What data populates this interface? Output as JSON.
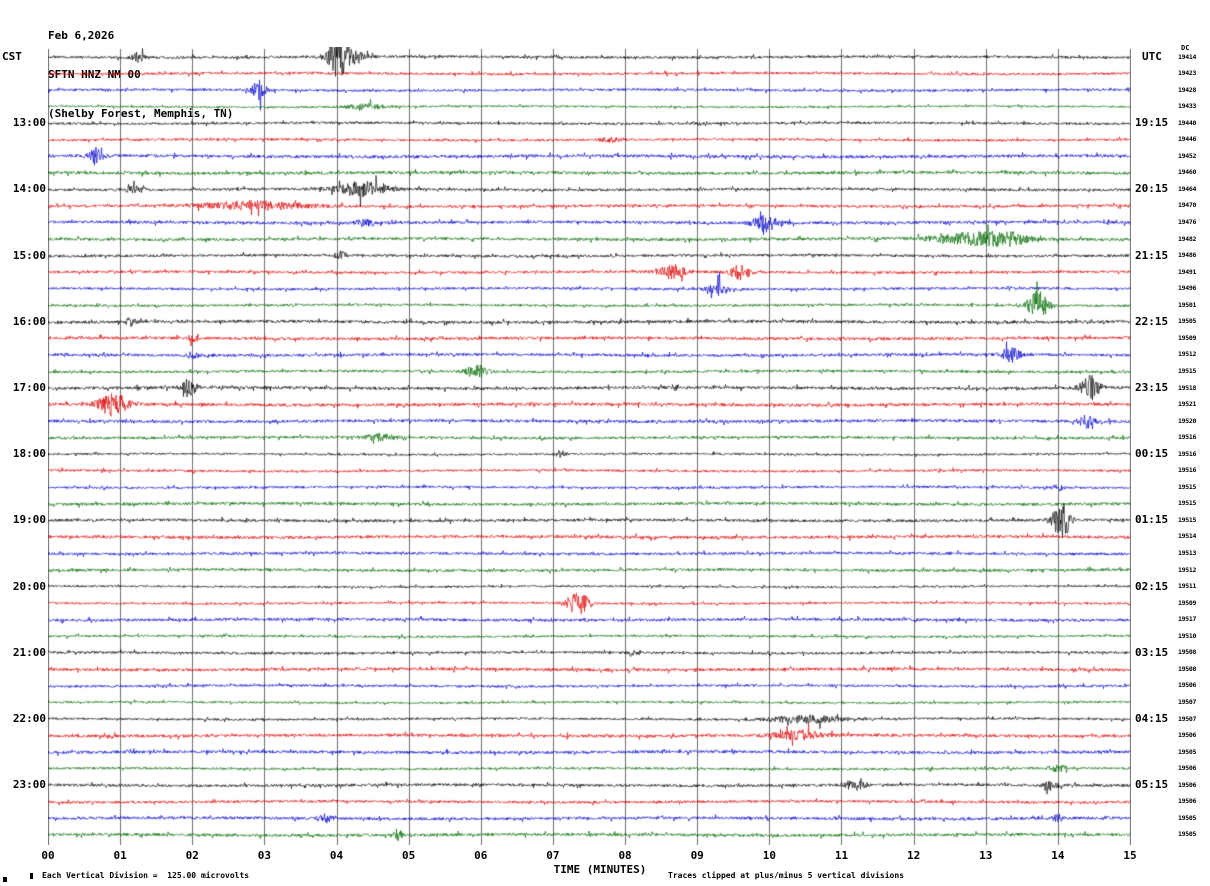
{
  "header": {
    "date": "Feb 6,2026",
    "station": "SFTN HNZ NM 00",
    "location": "(Shelby Forest, Memphis, TN)"
  },
  "axes": {
    "left_label": "CST",
    "right_label": "UTC",
    "x_label": "TIME (MINUTES)",
    "x_ticks": [
      "00",
      "01",
      "02",
      "03",
      "04",
      "05",
      "06",
      "07",
      "08",
      "09",
      "10",
      "11",
      "12",
      "13",
      "14",
      "15"
    ]
  },
  "footer": {
    "scale_note": "Each Vertical Division =  125.00 microvolts",
    "clip_note": "Traces clipped at plus/minus 5 vertical divisions"
  },
  "chart_data": {
    "type": "line",
    "title": "SFTN HNZ NM 00 (Shelby Forest, Memphis, TN) helicorder record, Feb 6,2026",
    "x_range_minutes": [
      0,
      15
    ],
    "minutes_per_row": 15,
    "rows": 48,
    "first_row_start_cst": "12:00",
    "grid": "vertical-minute-lines",
    "dc_label": "DC",
    "trace_colors": [
      "#000000",
      "#dd0000",
      "#0000cc",
      "#006a00"
    ],
    "grid_color": "#6e6e6e",
    "left_hour_labels": [
      "13:00",
      "14:00",
      "15:00",
      "16:00",
      "17:00",
      "18:00",
      "19:00",
      "20:00",
      "21:00",
      "22:00",
      "23:00"
    ],
    "right_hour_labels": [
      "19:15",
      "20:15",
      "21:15",
      "22:15",
      "23:15",
      "00:15",
      "01:15",
      "02:15",
      "03:15",
      "04:15",
      "05:15"
    ],
    "hour_label_rows": [
      4,
      8,
      12,
      16,
      20,
      24,
      28,
      32,
      36,
      40,
      44
    ],
    "right_gain_values": [
      19414,
      19423,
      19428,
      19433,
      19440,
      19446,
      19452,
      19460,
      19464,
      19470,
      19476,
      19482,
      19486,
      19491,
      19496,
      19501,
      19505,
      19509,
      19512,
      19515,
      19518,
      19521,
      19520,
      19516,
      19516,
      19516,
      19515,
      19515,
      19515,
      19514,
      19513,
      19512,
      19511,
      19509,
      19517,
      19510,
      19508,
      19508,
      19506,
      19507,
      19507,
      19506,
      19505,
      19506,
      19506,
      19506,
      19505,
      19505
    ],
    "noise_seed": 42,
    "events": [
      {
        "r": 0,
        "t": 1.25,
        "a": 5,
        "w": 0.06
      },
      {
        "r": 0,
        "t": 4.02,
        "a": 16,
        "w": 0.1
      },
      {
        "r": 0,
        "t": 4.15,
        "a": 8,
        "w": 0.15
      },
      {
        "r": 2,
        "t": 2.92,
        "a": 9,
        "w": 0.07
      },
      {
        "r": 3,
        "t": 4.4,
        "a": 2.5,
        "w": 0.2
      },
      {
        "r": 5,
        "t": 7.8,
        "a": 2,
        "w": 0.1
      },
      {
        "r": 6,
        "t": 0.68,
        "a": 8,
        "w": 0.07
      },
      {
        "r": 8,
        "t": 4.35,
        "a": 7,
        "w": 0.25
      },
      {
        "r": 8,
        "t": 1.2,
        "a": 3,
        "w": 0.1
      },
      {
        "r": 9,
        "t": 2.9,
        "a": 4,
        "w": 0.5
      },
      {
        "r": 10,
        "t": 9.95,
        "a": 8,
        "w": 0.12
      },
      {
        "r": 10,
        "t": 4.4,
        "a": 3,
        "w": 0.1
      },
      {
        "r": 11,
        "t": 12.9,
        "a": 6,
        "w": 0.4
      },
      {
        "r": 11,
        "t": 13.35,
        "a": 4,
        "w": 0.15
      },
      {
        "r": 12,
        "t": 4.05,
        "a": 4,
        "w": 0.05
      },
      {
        "r": 13,
        "t": 8.65,
        "a": 7,
        "w": 0.12
      },
      {
        "r": 13,
        "t": 9.6,
        "a": 7,
        "w": 0.1
      },
      {
        "r": 14,
        "t": 9.3,
        "a": 6,
        "w": 0.1
      },
      {
        "r": 15,
        "t": 13.72,
        "a": 14,
        "w": 0.1
      },
      {
        "r": 16,
        "t": 1.15,
        "a": 3.5,
        "w": 0.05
      },
      {
        "r": 17,
        "t": 2.0,
        "a": 3,
        "w": 0.05
      },
      {
        "r": 18,
        "t": 13.35,
        "a": 7,
        "w": 0.09
      },
      {
        "r": 18,
        "t": 2.0,
        "a": 3,
        "w": 0.06
      },
      {
        "r": 19,
        "t": 5.95,
        "a": 7,
        "w": 0.1
      },
      {
        "r": 20,
        "t": 1.95,
        "a": 9,
        "w": 0.07
      },
      {
        "r": 20,
        "t": 14.45,
        "a": 12,
        "w": 0.09
      },
      {
        "r": 21,
        "t": 0.9,
        "a": 11,
        "w": 0.14
      },
      {
        "r": 22,
        "t": 14.4,
        "a": 6,
        "w": 0.07
      },
      {
        "r": 23,
        "t": 4.6,
        "a": 3,
        "w": 0.15
      },
      {
        "r": 24,
        "t": 7.1,
        "a": 3.5,
        "w": 0.05
      },
      {
        "r": 26,
        "t": 14.0,
        "a": 4,
        "w": 0.05
      },
      {
        "r": 28,
        "t": 14.05,
        "a": 17,
        "w": 0.09
      },
      {
        "r": 33,
        "t": 7.35,
        "a": 11,
        "w": 0.11
      },
      {
        "r": 36,
        "t": 8.1,
        "a": 3,
        "w": 0.05
      },
      {
        "r": 40,
        "t": 10.5,
        "a": 3.5,
        "w": 0.35
      },
      {
        "r": 41,
        "t": 10.4,
        "a": 4,
        "w": 0.25
      },
      {
        "r": 43,
        "t": 14.0,
        "a": 3.5,
        "w": 0.08
      },
      {
        "r": 44,
        "t": 11.2,
        "a": 4.5,
        "w": 0.1
      },
      {
        "r": 44,
        "t": 13.9,
        "a": 3.5,
        "w": 0.08
      },
      {
        "r": 46,
        "t": 3.85,
        "a": 4.5,
        "w": 0.05
      },
      {
        "r": 46,
        "t": 14.0,
        "a": 3.5,
        "w": 0.05
      },
      {
        "r": 47,
        "t": 4.85,
        "a": 5,
        "w": 0.05
      }
    ]
  }
}
